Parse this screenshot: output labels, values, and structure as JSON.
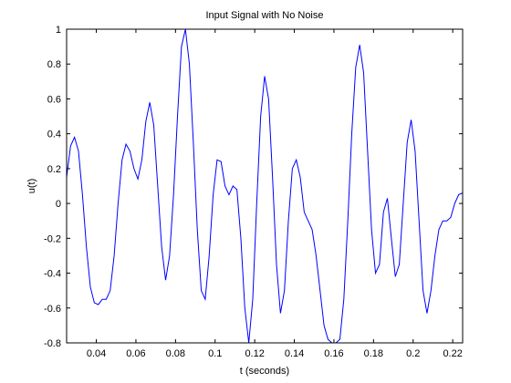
{
  "chart_data": {
    "type": "line",
    "title": "Input Signal with No Noise",
    "xlabel": "t (seconds)",
    "ylabel": "u(t)",
    "xlim": [
      0.025,
      0.225
    ],
    "ylim": [
      -0.8,
      1.0
    ],
    "xticks": [
      0.04,
      0.06,
      0.08,
      0.1,
      0.12,
      0.14,
      0.16,
      0.18,
      0.2,
      0.22
    ],
    "xtick_labels": [
      "0.04",
      "0.06",
      "0.08",
      "0.1",
      "0.12",
      "0.14",
      "0.16",
      "0.18",
      "0.2",
      "0.22"
    ],
    "yticks": [
      -0.8,
      -0.6,
      -0.4,
      -0.2,
      0,
      0.2,
      0.4,
      0.6,
      0.8,
      1
    ],
    "ytick_labels": [
      "-0.8",
      "-0.6",
      "-0.4",
      "-0.2",
      "0",
      "0.2",
      "0.4",
      "0.6",
      "0.8",
      "1"
    ],
    "grid": false,
    "line_color": "#0000ff",
    "series": [
      {
        "x": [
          0.025,
          0.027,
          0.029,
          0.031,
          0.033,
          0.035,
          0.037,
          0.039,
          0.041,
          0.043,
          0.045,
          0.047,
          0.049,
          0.051,
          0.053,
          0.055,
          0.057,
          0.059,
          0.061,
          0.063,
          0.065,
          0.067,
          0.069,
          0.071,
          0.073,
          0.075,
          0.077,
          0.079,
          0.081,
          0.083,
          0.085,
          0.087,
          0.089,
          0.091,
          0.093,
          0.095,
          0.097,
          0.099,
          0.101,
          0.103,
          0.105,
          0.107,
          0.109,
          0.111,
          0.113,
          0.115,
          0.117,
          0.119,
          0.121,
          0.123,
          0.125,
          0.127,
          0.129,
          0.131,
          0.133,
          0.135,
          0.137,
          0.139,
          0.141,
          0.143,
          0.145,
          0.147,
          0.149,
          0.151,
          0.153,
          0.155,
          0.157,
          0.159,
          0.161,
          0.163,
          0.165,
          0.167,
          0.169,
          0.171,
          0.173,
          0.175,
          0.177,
          0.179,
          0.181,
          0.183,
          0.185,
          0.187,
          0.189,
          0.191,
          0.193,
          0.195,
          0.197,
          0.199,
          0.201,
          0.203,
          0.205,
          0.207,
          0.209,
          0.211,
          0.213,
          0.215,
          0.217,
          0.219,
          0.221,
          0.223,
          0.225
        ],
        "y": [
          0.15,
          0.33,
          0.38,
          0.3,
          0.05,
          -0.25,
          -0.48,
          -0.57,
          -0.58,
          -0.55,
          -0.55,
          -0.5,
          -0.3,
          0.0,
          0.25,
          0.34,
          0.3,
          0.2,
          0.14,
          0.25,
          0.47,
          0.58,
          0.45,
          0.1,
          -0.25,
          -0.44,
          -0.3,
          0.05,
          0.5,
          0.9,
          1.0,
          0.8,
          0.35,
          -0.15,
          -0.5,
          -0.55,
          -0.3,
          0.05,
          0.25,
          0.24,
          0.1,
          0.05,
          0.1,
          0.08,
          -0.2,
          -0.6,
          -0.8,
          -0.55,
          0.0,
          0.5,
          0.73,
          0.6,
          0.15,
          -0.35,
          -0.63,
          -0.5,
          -0.1,
          0.2,
          0.25,
          0.15,
          -0.05,
          -0.1,
          -0.15,
          -0.3,
          -0.5,
          -0.7,
          -0.78,
          -0.8,
          -0.8,
          -0.78,
          -0.55,
          -0.1,
          0.4,
          0.78,
          0.91,
          0.75,
          0.3,
          -0.15,
          -0.4,
          -0.35,
          -0.05,
          0.03,
          -0.2,
          -0.42,
          -0.35,
          0.0,
          0.35,
          0.48,
          0.3,
          -0.1,
          -0.5,
          -0.63,
          -0.5,
          -0.3,
          -0.15,
          -0.1,
          -0.1,
          -0.08,
          0.0,
          0.05,
          0.06
        ]
      }
    ]
  }
}
